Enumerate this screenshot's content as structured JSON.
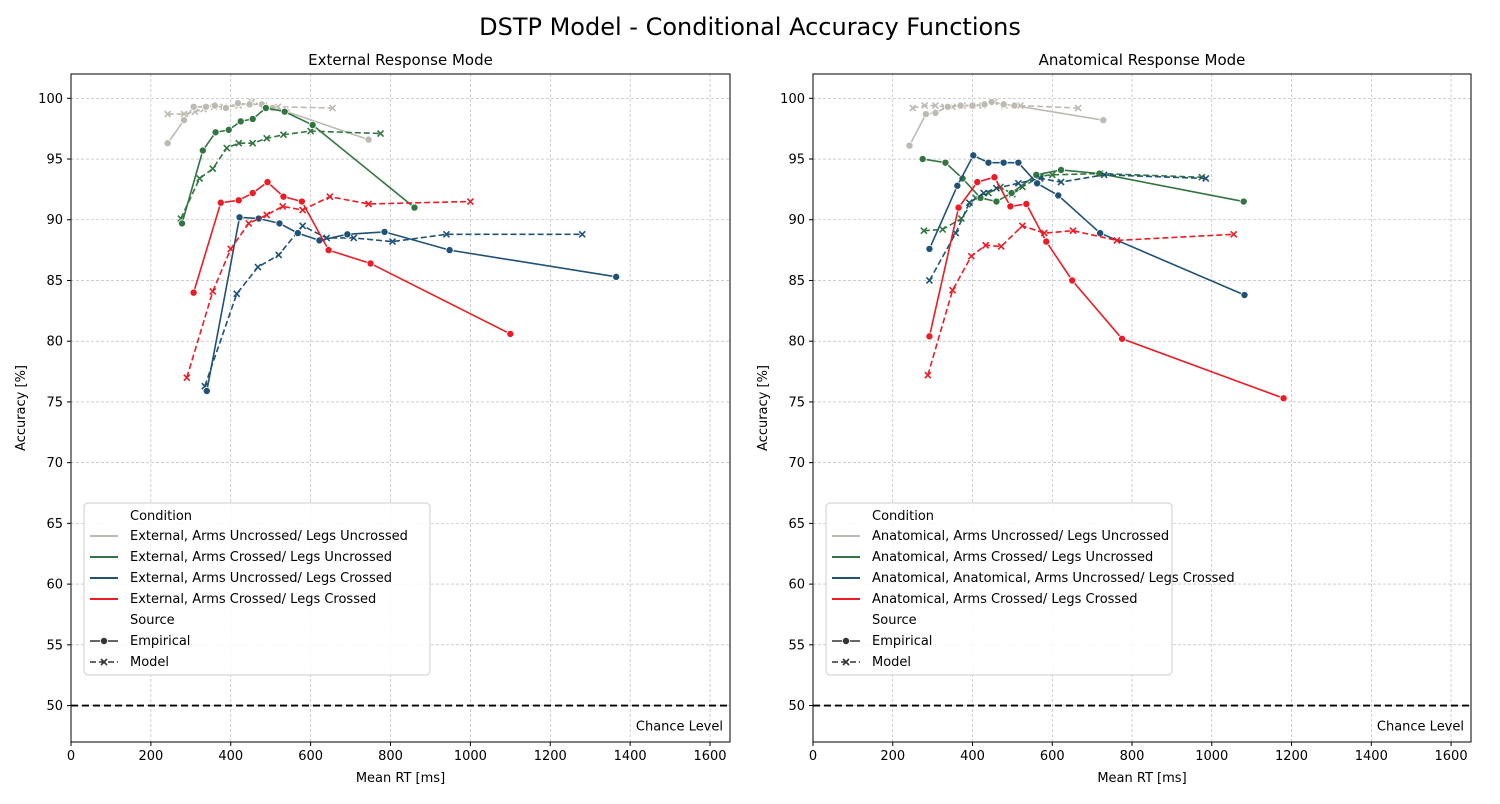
{
  "figure": {
    "title": "DSTP Model - Conditional Accuracy Functions"
  },
  "legend_labels": {
    "condition_heading": "Condition",
    "source_heading": "Source",
    "sources": [
      "Empirical",
      "Model"
    ]
  },
  "colors": {
    "uncrossed_uncrossed": "#bdbab3",
    "arms_crossed": "#337541",
    "legs_crossed": "#1f5276",
    "both_crossed": "#ed1b24",
    "grid": "#b0b0b0",
    "chance": "#000000"
  },
  "chart_data": [
    {
      "type": "line",
      "title": "External Response Mode",
      "xlabel": "Mean RT [ms]",
      "ylabel": "Accuracy [%]",
      "xlim": [
        0,
        1650
      ],
      "ylim": [
        47,
        102
      ],
      "xticks": [
        0,
        200,
        400,
        600,
        800,
        1000,
        1200,
        1400,
        1600
      ],
      "yticks": [
        50,
        55,
        60,
        65,
        70,
        75,
        80,
        85,
        90,
        95,
        100
      ],
      "grid": true,
      "legend_position": "lower-left",
      "reference_line": {
        "y": 50,
        "label": "Chance Level"
      },
      "series": [
        {
          "name": "External, Arms Uncrossed/ Legs Uncrossed",
          "color_key": "uncrossed_uncrossed",
          "empirical": [
            [
              242,
              96.3
            ],
            [
              283,
              98.2
            ],
            [
              307,
              99.3
            ],
            [
              338,
              99.3
            ],
            [
              360,
              99.4
            ],
            [
              388,
              99.2
            ],
            [
              418,
              99.6
            ],
            [
              447,
              99.5
            ],
            [
              478,
              99.5
            ],
            [
              505,
              99.2
            ],
            [
              540,
              98.9
            ],
            [
              745,
              96.6
            ]
          ],
          "model": [
            [
              242,
              98.7
            ],
            [
              283,
              98.7
            ],
            [
              310,
              98.9
            ],
            [
              332,
              99.1
            ],
            [
              358,
              99.3
            ],
            [
              382,
              99.3
            ],
            [
              420,
              99.4
            ],
            [
              453,
              99.7
            ],
            [
              483,
              99.4
            ],
            [
              518,
              99.3
            ],
            [
              655,
              99.2
            ]
          ]
        },
        {
          "name": "External, Arms Crossed/ Legs Uncrossed",
          "color_key": "arms_crossed",
          "empirical": [
            [
              278,
              89.7
            ],
            [
              330,
              95.7
            ],
            [
              362,
              97.2
            ],
            [
              395,
              97.4
            ],
            [
              425,
              98.1
            ],
            [
              455,
              98.3
            ],
            [
              488,
              99.2
            ],
            [
              535,
              98.9
            ],
            [
              605,
              97.8
            ],
            [
              860,
              91.0
            ]
          ],
          "model": [
            [
              275,
              90.1
            ],
            [
              322,
              93.4
            ],
            [
              355,
              94.2
            ],
            [
              390,
              95.9
            ],
            [
              420,
              96.3
            ],
            [
              455,
              96.3
            ],
            [
              490,
              96.7
            ],
            [
              532,
              97.0
            ],
            [
              600,
              97.3
            ],
            [
              775,
              97.1
            ]
          ]
        },
        {
          "name": "External, Arms Uncrossed/ Legs Crossed",
          "color_key": "legs_crossed",
          "empirical": [
            [
              340,
              75.9
            ],
            [
              422,
              90.2
            ],
            [
              470,
              90.1
            ],
            [
              522,
              89.7
            ],
            [
              568,
              88.9
            ],
            [
              622,
              88.3
            ],
            [
              692,
              88.8
            ],
            [
              785,
              89.0
            ],
            [
              948,
              87.5
            ],
            [
              1365,
              85.3
            ]
          ],
          "model": [
            [
              335,
              76.3
            ],
            [
              415,
              83.9
            ],
            [
              468,
              86.1
            ],
            [
              520,
              87.1
            ],
            [
              580,
              89.5
            ],
            [
              640,
              88.5
            ],
            [
              708,
              88.5
            ],
            [
              805,
              88.2
            ],
            [
              940,
              88.8
            ],
            [
              1280,
              88.8
            ]
          ]
        },
        {
          "name": "External, Arms Crossed/ Legs Crossed",
          "color_key": "both_crossed",
          "empirical": [
            [
              307,
              84.0
            ],
            [
              375,
              91.4
            ],
            [
              420,
              91.6
            ],
            [
              455,
              92.2
            ],
            [
              492,
              93.1
            ],
            [
              532,
              91.9
            ],
            [
              578,
              91.5
            ],
            [
              645,
              87.5
            ],
            [
              750,
              86.4
            ],
            [
              1100,
              80.6
            ]
          ],
          "model": [
            [
              290,
              77.0
            ],
            [
              355,
              84.1
            ],
            [
              400,
              87.6
            ],
            [
              445,
              89.7
            ],
            [
              490,
              90.4
            ],
            [
              530,
              91.1
            ],
            [
              580,
              90.8
            ],
            [
              648,
              91.9
            ],
            [
              745,
              91.3
            ],
            [
              1000,
              91.5
            ]
          ]
        }
      ]
    },
    {
      "type": "line",
      "title": "Anatomical Response Mode",
      "xlabel": "Mean RT [ms]",
      "ylabel": "Accuracy [%]",
      "xlim": [
        0,
        1650
      ],
      "ylim": [
        47,
        102
      ],
      "xticks": [
        0,
        200,
        400,
        600,
        800,
        1000,
        1200,
        1400,
        1600
      ],
      "yticks": [
        50,
        55,
        60,
        65,
        70,
        75,
        80,
        85,
        90,
        95,
        100
      ],
      "grid": true,
      "legend_position": "lower-left",
      "reference_line": {
        "y": 50,
        "label": "Chance Level"
      },
      "series": [
        {
          "name": "Anatomical, Arms Uncrossed/ Legs Uncrossed",
          "color_key": "uncrossed_uncrossed",
          "empirical": [
            [
              242,
              96.1
            ],
            [
              283,
              98.7
            ],
            [
              307,
              98.8
            ],
            [
              338,
              99.3
            ],
            [
              370,
              99.4
            ],
            [
              400,
              99.4
            ],
            [
              430,
              99.5
            ],
            [
              448,
              99.7
            ],
            [
              478,
              99.5
            ],
            [
              505,
              99.4
            ],
            [
              728,
              98.2
            ]
          ],
          "model": [
            [
              250,
              99.2
            ],
            [
              280,
              99.4
            ],
            [
              307,
              99.4
            ],
            [
              330,
              99.3
            ],
            [
              350,
              99.3
            ],
            [
              375,
              99.4
            ],
            [
              400,
              99.4
            ],
            [
              425,
              99.4
            ],
            [
              455,
              99.7
            ],
            [
              480,
              99.4
            ],
            [
              520,
              99.4
            ],
            [
              665,
              99.2
            ]
          ]
        },
        {
          "name": "Anatomical, Arms Crossed/ Legs Uncrossed",
          "color_key": "arms_crossed",
          "empirical": [
            [
              275,
              95.0
            ],
            [
              332,
              94.7
            ],
            [
              375,
              93.4
            ],
            [
              420,
              91.8
            ],
            [
              460,
              91.5
            ],
            [
              498,
              92.2
            ],
            [
              560,
              93.7
            ],
            [
              622,
              94.1
            ],
            [
              718,
              93.8
            ],
            [
              1080,
              91.5
            ]
          ],
          "model": [
            [
              278,
              89.1
            ],
            [
              325,
              89.2
            ],
            [
              372,
              90.1
            ],
            [
              408,
              91.8
            ],
            [
              440,
              92.2
            ],
            [
              470,
              92.7
            ],
            [
              500,
              92.1
            ],
            [
              525,
              92.7
            ],
            [
              572,
              93.6
            ],
            [
              600,
              93.7
            ],
            [
              720,
              93.8
            ],
            [
              975,
              93.5
            ]
          ]
        },
        {
          "name": "Anatomical, Anatomical, Arms Uncrossed/ Legs Crossed",
          "color_key": "legs_crossed",
          "empirical": [
            [
              292,
              87.6
            ],
            [
              362,
              92.8
            ],
            [
              402,
              95.3
            ],
            [
              440,
              94.7
            ],
            [
              478,
              94.7
            ],
            [
              515,
              94.7
            ],
            [
              562,
              93.0
            ],
            [
              615,
              92.0
            ],
            [
              720,
              88.9
            ],
            [
              1082,
              83.8
            ]
          ],
          "model": [
            [
              292,
              85.0
            ],
            [
              358,
              88.9
            ],
            [
              392,
              91.4
            ],
            [
              428,
              92.2
            ],
            [
              460,
              92.6
            ],
            [
              515,
              93.0
            ],
            [
              570,
              93.4
            ],
            [
              622,
              93.1
            ],
            [
              730,
              93.7
            ],
            [
              985,
              93.4
            ]
          ]
        },
        {
          "name": "Anatomical, Arms Crossed/ Legs Crossed",
          "color_key": "both_crossed",
          "empirical": [
            [
              292,
              80.4
            ],
            [
              365,
              91.0
            ],
            [
              412,
              93.1
            ],
            [
              455,
              93.5
            ],
            [
              495,
              91.1
            ],
            [
              535,
              91.3
            ],
            [
              585,
              88.2
            ],
            [
              650,
              85.0
            ],
            [
              775,
              80.2
            ],
            [
              1180,
              75.3
            ]
          ],
          "model": [
            [
              288,
              77.2
            ],
            [
              350,
              84.2
            ],
            [
              397,
              87.0
            ],
            [
              433,
              87.9
            ],
            [
              472,
              87.8
            ],
            [
              525,
              89.5
            ],
            [
              580,
              88.9
            ],
            [
              652,
              89.1
            ],
            [
              762,
              88.3
            ],
            [
              1055,
              88.8
            ]
          ]
        }
      ]
    }
  ]
}
